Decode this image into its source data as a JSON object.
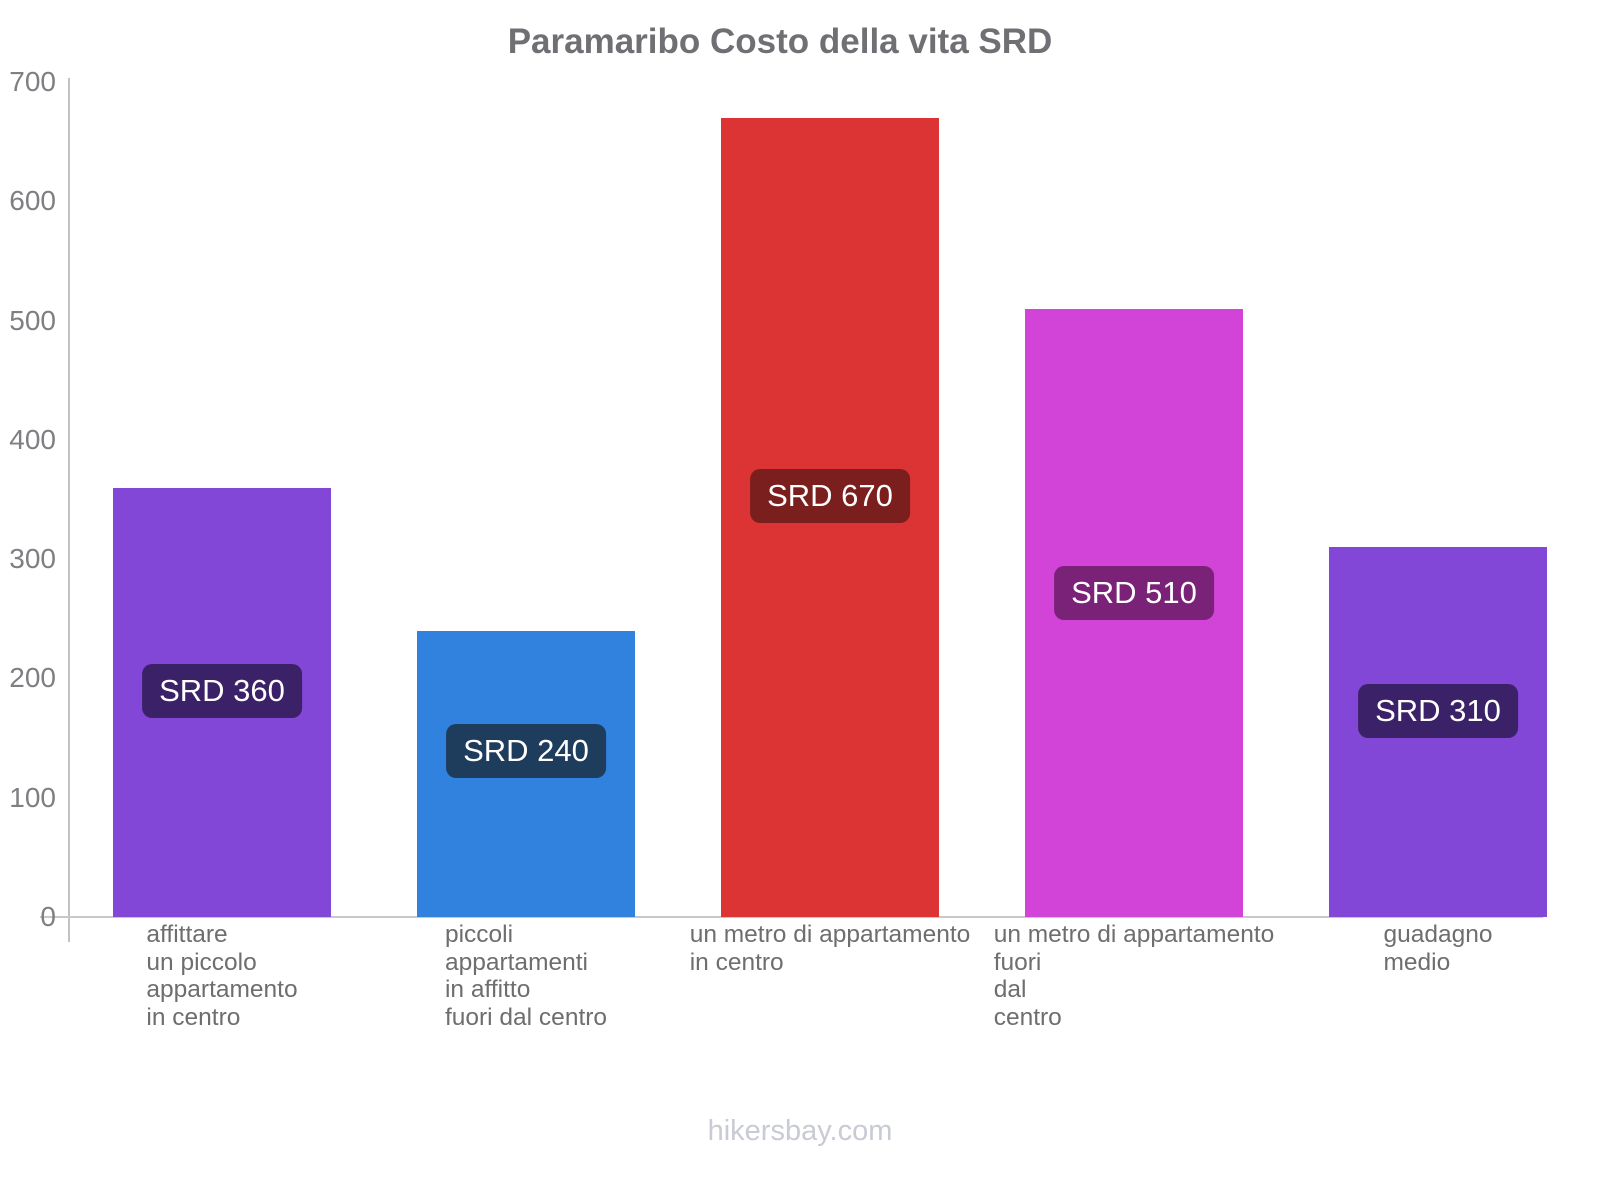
{
  "title": "Paramaribo Costo della vita SRD",
  "footer": "hikersbay.com",
  "chart_data": {
    "type": "bar",
    "title": "Paramaribo Costo della vita SRD",
    "xlabel": "",
    "ylabel": "",
    "ylim": [
      0,
      700
    ],
    "yticks": [
      0,
      100,
      200,
      300,
      400,
      500,
      600,
      700
    ],
    "grid": false,
    "legend": false,
    "currency": "SRD",
    "categories": [
      "affittare\nun piccolo\nappartamento\nin centro",
      "piccoli\nappartamenti\nin affitto\nfuori dal centro",
      "un metro di appartamento\nin centro",
      "un metro di appartamento\nfuori\ndal\ncentro",
      "guadagno\nmedio"
    ],
    "bars": [
      {
        "category": "affittare\nun piccolo\nappartamento\nin centro",
        "value": 360,
        "value_label": "SRD 360",
        "color": "#8347d8",
        "label_bg": "#3b2167"
      },
      {
        "category": "piccoli\nappartamenti\nin affitto\nfuori dal centro",
        "value": 240,
        "value_label": "SRD 240",
        "color": "#3182de",
        "label_bg": "#1e3c5c"
      },
      {
        "category": "un metro di appartamento\nin centro",
        "value": 670,
        "value_label": "SRD 670",
        "color": "#dc3434",
        "label_bg": "#7b1e1e"
      },
      {
        "category": "un metro di appartamento\nfuori\ndal\ncentro",
        "value": 510,
        "value_label": "SRD 510",
        "color": "#d244d8",
        "label_bg": "#7a2277"
      },
      {
        "category": "guadagno\nmedio",
        "value": 310,
        "value_label": "SRD 310",
        "color": "#8347d8",
        "label_bg": "#3b2167"
      }
    ]
  }
}
